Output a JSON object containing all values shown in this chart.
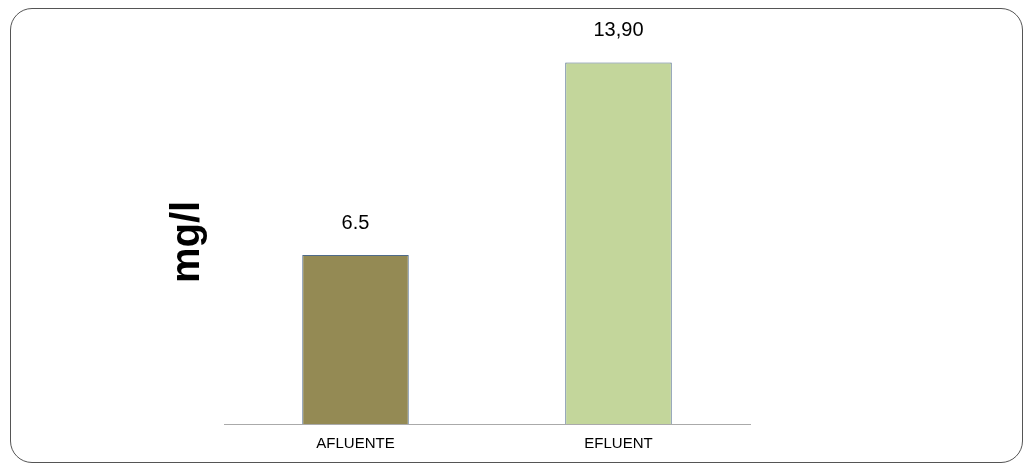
{
  "chart_data": {
    "type": "bar",
    "ylabel": "mg/l",
    "categories": [
      "AFLUENTE",
      "EFLUENT"
    ],
    "values": [
      6.5,
      13.9
    ],
    "colors": [
      "#948a54",
      "#c3d69b"
    ],
    "value_labels": [
      "6.5",
      "13,90"
    ],
    "grid": false,
    "legend": false
  }
}
